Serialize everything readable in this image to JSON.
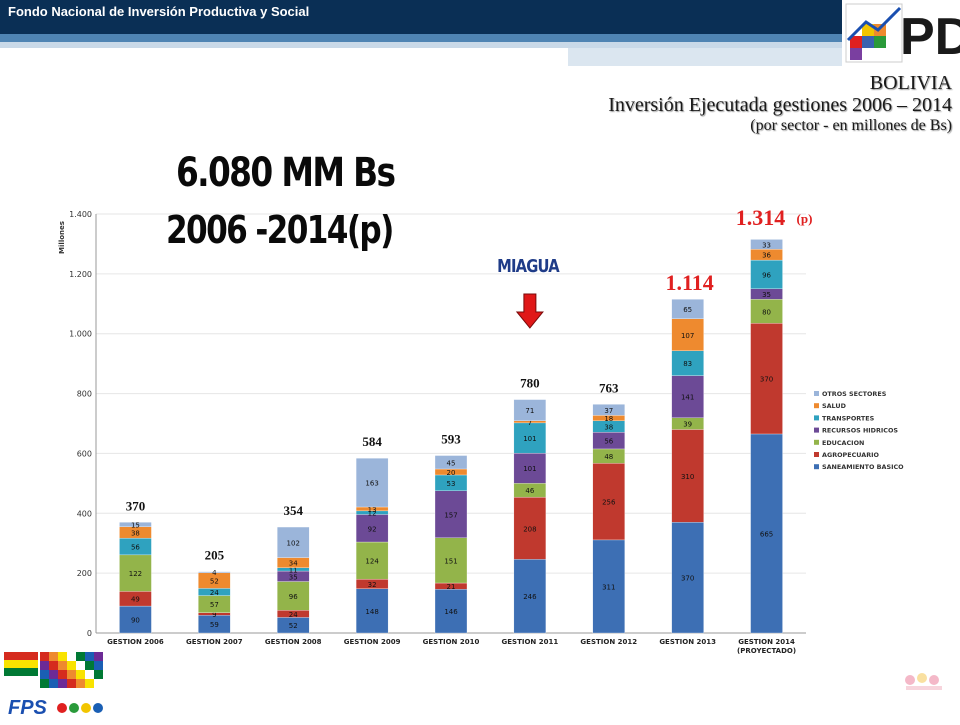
{
  "header": {
    "org_title": "Fondo Nacional de Inversión Productiva y Social",
    "logo_text": "PD",
    "country": "BOLIVIA",
    "title": "Inversión Ejecutada gestiones 2006 – 2014",
    "subtitle": "(por sector - en millones de Bs)"
  },
  "summary": {
    "total": "6.080 MM Bs",
    "period": "2006 -2014(p)"
  },
  "callouts": {
    "miagua": "MIAGUA",
    "total_2013": "1.114",
    "total_2014": "1.314",
    "total_2014_suffix": "(p)"
  },
  "footer": {
    "fps_text": "FPS"
  },
  "colors": {
    "navy": "#0a2f55",
    "red_callout": "#e02020",
    "miagua_blue": "#1f3c88",
    "arrow_red": "#e01818"
  },
  "chart_data": {
    "type": "bar",
    "stacked": true,
    "ylabel": "Millones",
    "ylim": [
      0,
      1400
    ],
    "yticks": [
      0,
      200,
      400,
      600,
      800,
      1000,
      1200,
      1400
    ],
    "ytick_labels": [
      "0",
      "200",
      "400",
      "600",
      "800",
      "1.000",
      "1.200",
      "1.400"
    ],
    "categories": [
      "GESTION 2006",
      "GESTION 2007",
      "GESTION 2008",
      "GESTION 2009",
      "GESTION 2010",
      "GESTION 2011",
      "GESTION 2012",
      "GESTION 2013",
      "GESTION 2014"
    ],
    "category_sublabels": [
      "",
      "",
      "",
      "",
      "",
      "",
      "",
      "",
      "(PROYECTADO)"
    ],
    "totals": [
      "370",
      "205",
      "354",
      "584",
      "593",
      "780",
      "763",
      "",
      ""
    ],
    "legend_position": "right",
    "series": [
      {
        "name": "SANEAMIENTO BASICO",
        "color": "#3d6fb4",
        "values": [
          90,
          59,
          52,
          148,
          146,
          246,
          311,
          370,
          665
        ]
      },
      {
        "name": "AGROPECUARIO",
        "color": "#c0392e",
        "values": [
          49,
          9,
          24,
          32,
          21,
          208,
          256,
          310,
          370
        ]
      },
      {
        "name": "EDUCACION",
        "color": "#93b44a",
        "values": [
          122,
          57,
          96,
          124,
          151,
          46,
          48,
          39,
          80
        ]
      },
      {
        "name": "RECURSOS HIDRICOS",
        "color": "#6c4a96",
        "values": [
          0,
          0,
          35,
          92,
          157,
          101,
          56,
          141,
          35
        ]
      },
      {
        "name": "TRANSPORTES",
        "color": "#2fa2bf",
        "values": [
          56,
          24,
          11,
          12,
          53,
          101,
          38,
          83,
          96
        ]
      },
      {
        "name": "SALUD",
        "color": "#ee8a2f",
        "values": [
          38,
          52,
          34,
          13,
          20,
          7,
          18,
          107,
          36
        ]
      },
      {
        "name": "OTROS SECTORES",
        "color": "#9bb5da",
        "values": [
          15,
          4,
          102,
          163,
          45,
          71,
          37,
          65,
          33
        ]
      }
    ],
    "segment_labels": [
      [
        "90",
        "59",
        "52",
        "148",
        "146",
        "246",
        "311",
        "370",
        "665"
      ],
      [
        "49",
        "9",
        "24",
        "32",
        "21",
        "208",
        "256",
        "310",
        "370"
      ],
      [
        "122",
        "57",
        "96",
        "124",
        "151",
        "46",
        "48",
        "39",
        "80"
      ],
      [
        "0",
        "0",
        "35",
        "92",
        "157",
        "101",
        "56",
        "141",
        "35"
      ],
      [
        "56",
        "24",
        "11",
        "12",
        "53",
        "101",
        "38",
        "83",
        "96"
      ],
      [
        "38",
        "52",
        "34",
        "13",
        "20",
        "7",
        "18",
        "107",
        "36"
      ],
      [
        "15",
        "4",
        "102",
        "163",
        "45",
        "71",
        "37",
        "65",
        "33"
      ]
    ]
  }
}
